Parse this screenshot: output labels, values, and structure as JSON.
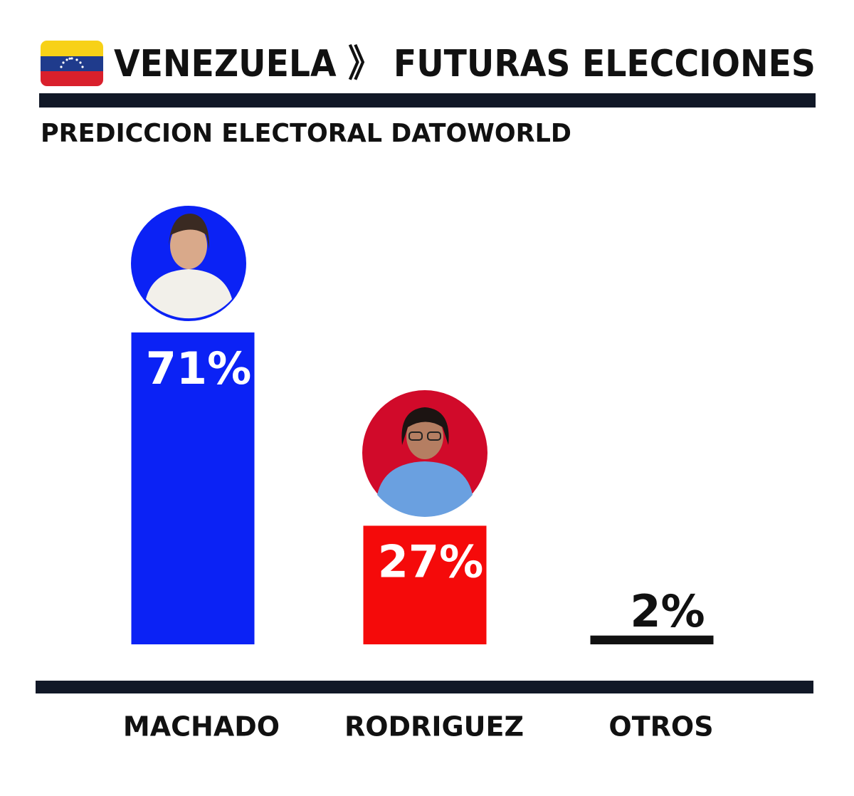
{
  "chart_data": {
    "type": "bar",
    "title": "VENEZUELA 》 FUTURAS ELECCIONES",
    "subtitle": "PREDICCION ELECTORAL DATOWORLD",
    "categories": [
      "MACHADO",
      "RODRIGUEZ",
      "OTROS"
    ],
    "values": [
      71,
      27,
      2
    ],
    "value_labels": [
      "71%",
      "27%",
      "2%"
    ],
    "colors": [
      "#0b22f5",
      "#f50a0a",
      "#111111"
    ]
  }
}
